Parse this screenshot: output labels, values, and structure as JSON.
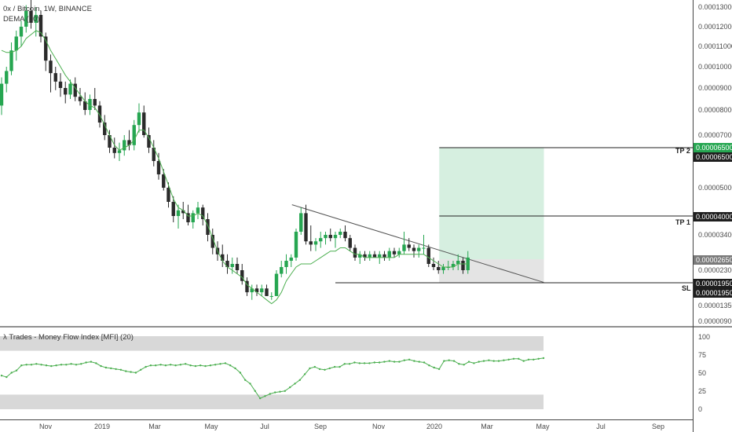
{
  "header": {
    "symbol": "0x / Bitcoin, 1W, BINANCE",
    "indicator": "DEMA (10)"
  },
  "colors": {
    "up": "#26a651",
    "down": "#2b2b2b",
    "dema": "#4caf50",
    "mfi": "#4caf50",
    "target_zone": "#d6efe0",
    "stop_zone": "#e4e4e4",
    "band": "#d8d8d8",
    "tp2_pill": "#26a651",
    "dark_pill": "#1e1e1e"
  },
  "chart_data": [
    {
      "type": "candlestick",
      "title": "0x / Bitcoin, 1W, BINANCE",
      "y_ticks": [
        "0.00013000",
        "0.00012000",
        "0.00011000",
        "0.00010000",
        "0.00009000",
        "0.00008000",
        "0.00007000",
        "0.00006500",
        "0.00005000",
        "0.00004000",
        "0.00003400",
        "0.00002650",
        "0.00002300",
        "0.00001950",
        "0.00001350",
        "0.00000900"
      ],
      "x_ticks": [
        "Nov",
        "2019",
        "Mar",
        "May",
        "Jul",
        "Sep",
        "Nov",
        "2020",
        "Mar",
        "May",
        "Jul",
        "Sep"
      ],
      "candles": [
        [
          8.2e-05,
          9.5e-05,
          7.8e-05,
          9.2e-05
        ],
        [
          9.2e-05,
          0.0001,
          8.8e-05,
          9.8e-05
        ],
        [
          9.8e-05,
          0.000112,
          9.6e-05,
          0.000108
        ],
        [
          0.000108,
          0.000118,
          0.000103,
          0.000115
        ],
        [
          0.000115,
          0.000123,
          0.00011,
          0.00012
        ],
        [
          0.00012,
          0.000131,
          0.000117,
          0.000128
        ],
        [
          0.000128,
          0.000135,
          0.000119,
          0.000122
        ],
        [
          0.000122,
          0.00013,
          0.000115,
          0.000126
        ],
        [
          0.000126,
          0.000128,
          0.000112,
          0.000115
        ],
        [
          0.000115,
          0.000117,
          9.8e-05,
          0.000103
        ],
        [
          0.000103,
          0.000106,
          8.8e-05,
          9.7e-05
        ],
        [
          9.7e-05,
          0.0001,
          8.9e-05,
          9.3e-05
        ],
        [
          9.3e-05,
          9.7e-05,
          8.6e-05,
          9e-05
        ],
        [
          9e-05,
          9.3e-05,
          8.3e-05,
          8.7e-05
        ],
        [
          8.7e-05,
          9.4e-05,
          8.5e-05,
          9.2e-05
        ],
        [
          9.2e-05,
          9.5e-05,
          8.4e-05,
          8.6e-05
        ],
        [
          8.6e-05,
          9e-05,
          8.2e-05,
          8.4e-05
        ],
        [
          8.4e-05,
          8.8e-05,
          7.8e-05,
          8e-05
        ],
        [
          8e-05,
          8.7e-05,
          7.8e-05,
          8.5e-05
        ],
        [
          8.5e-05,
          9e-05,
          8e-05,
          8.2e-05
        ],
        [
          8.2e-05,
          8.4e-05,
          7.3e-05,
          7.5e-05
        ],
        [
          7.5e-05,
          7.8e-05,
          6.8e-05,
          7e-05
        ],
        [
          7e-05,
          7.2e-05,
          6.3e-05,
          6.5e-05
        ],
        [
          6.5e-05,
          6.9e-05,
          6.1e-05,
          6.3e-05
        ],
        [
          6.3e-05,
          6.7e-05,
          6e-05,
          6.4e-05
        ],
        [
          6.4e-05,
          7e-05,
          6.2e-05,
          6.8e-05
        ],
        [
          6.8e-05,
          7.2e-05,
          6.4e-05,
          6.6e-05
        ],
        [
          6.6e-05,
          7.6e-05,
          6.4e-05,
          7.4e-05
        ],
        [
          7.4e-05,
          8.3e-05,
          7.1e-05,
          7.9e-05
        ],
        [
          7.9e-05,
          8.2e-05,
          6.9e-05,
          7e-05
        ],
        [
          7e-05,
          7.3e-05,
          6.3e-05,
          6.5e-05
        ],
        [
          6.5e-05,
          6.8e-05,
          5.8e-05,
          6e-05
        ],
        [
          6e-05,
          6.3e-05,
          5.3e-05,
          5.5e-05
        ],
        [
          5.5e-05,
          5.7e-05,
          4.9e-05,
          5e-05
        ],
        [
          5e-05,
          5.2e-05,
          4.3e-05,
          4.5e-05
        ],
        [
          4.5e-05,
          4.7e-05,
          3.8e-05,
          4e-05
        ],
        [
          4e-05,
          4.4e-05,
          3.6e-05,
          4.2e-05
        ],
        [
          4.2e-05,
          4.5e-05,
          3.9e-05,
          4.1e-05
        ],
        [
          4.1e-05,
          4.4e-05,
          3.7e-05,
          3.8e-05
        ],
        [
          3.8e-05,
          4.2e-05,
          3.6e-05,
          4.1e-05
        ],
        [
          4.1e-05,
          4.5e-05,
          3.9e-05,
          4.3e-05
        ],
        [
          4.3e-05,
          4.4e-05,
          3.7e-05,
          3.9e-05
        ],
        [
          3.9e-05,
          4.1e-05,
          3.2e-05,
          3.4e-05
        ],
        [
          3.4e-05,
          3.6e-05,
          2.8e-05,
          3e-05
        ],
        [
          3e-05,
          3.2e-05,
          2.6e-05,
          2.8e-05
        ],
        [
          2.8e-05,
          3.1e-05,
          2.4e-05,
          2.6e-05
        ],
        [
          2.6e-05,
          2.8e-05,
          2.2e-05,
          2.4e-05
        ],
        [
          2.4e-05,
          2.7e-05,
          2.2e-05,
          2.5e-05
        ],
        [
          2.5e-05,
          2.7e-05,
          2.2e-05,
          2.3e-05
        ],
        [
          2.3e-05,
          2.5e-05,
          1.9e-05,
          2e-05
        ],
        [
          2e-05,
          2.1e-05,
          1.6e-05,
          1.7e-05
        ],
        [
          1.7e-05,
          1.9e-05,
          1.5e-05,
          1.8e-05
        ],
        [
          1.8e-05,
          1.9e-05,
          1.6e-05,
          1.7e-05
        ],
        [
          1.7e-05,
          1.9e-05,
          1.6e-05,
          1.8e-05
        ],
        [
          1.8e-05,
          1.9e-05,
          1.6e-05,
          1.6e-05
        ],
        [
          1.6e-05,
          1.7e-05,
          1.5e-05,
          1.6e-05
        ],
        [
          1.6e-05,
          2.3e-05,
          1.6e-05,
          2.2e-05
        ],
        [
          2.2e-05,
          2.6e-05,
          2.1e-05,
          2.4e-05
        ],
        [
          2.4e-05,
          2.8e-05,
          2.2e-05,
          2.6e-05
        ],
        [
          2.6e-05,
          2.8e-05,
          2.4e-05,
          2.7e-05
        ],
        [
          2.7e-05,
          3.6e-05,
          2.6e-05,
          3.5e-05
        ],
        [
          3.5e-05,
          4.3e-05,
          3.4e-05,
          4.1e-05
        ],
        [
          4.1e-05,
          4.4e-05,
          3.1e-05,
          3.2e-05
        ],
        [
          3.2e-05,
          3.7e-05,
          2.9e-05,
          3.1e-05
        ],
        [
          3.1e-05,
          3.3e-05,
          2.9e-05,
          3.2e-05
        ],
        [
          3.2e-05,
          3.5e-05,
          3e-05,
          3.3e-05
        ],
        [
          3.3e-05,
          3.5e-05,
          3.1e-05,
          3.4e-05
        ],
        [
          3.4e-05,
          3.6e-05,
          3.2e-05,
          3.3e-05
        ],
        [
          3.3e-05,
          3.5e-05,
          3e-05,
          3.4e-05
        ],
        [
          3.4e-05,
          3.6e-05,
          3.3e-05,
          3.5e-05
        ],
        [
          3.5e-05,
          3.7e-05,
          3.2e-05,
          3.3e-05
        ],
        [
          3.3e-05,
          3.4e-05,
          2.9e-05,
          3e-05
        ],
        [
          3e-05,
          3.1e-05,
          2.6e-05,
          2.7e-05
        ],
        [
          2.7e-05,
          2.9e-05,
          2.5e-05,
          2.8e-05
        ],
        [
          2.8e-05,
          2.9e-05,
          2.6e-05,
          2.7e-05
        ],
        [
          2.7e-05,
          2.9e-05,
          2.6e-05,
          2.8e-05
        ],
        [
          2.8e-05,
          2.9e-05,
          2.7e-05,
          2.7e-05
        ],
        [
          2.7e-05,
          2.9e-05,
          2.5e-05,
          2.8e-05
        ],
        [
          2.8e-05,
          2.9e-05,
          2.6e-05,
          2.7e-05
        ],
        [
          2.7e-05,
          3e-05,
          2.6e-05,
          2.9e-05
        ],
        [
          2.9e-05,
          3e-05,
          2.7e-05,
          2.8e-05
        ],
        [
          2.8e-05,
          3e-05,
          2.7e-05,
          2.9e-05
        ],
        [
          2.9e-05,
          3.5e-05,
          2.8e-05,
          3.1e-05
        ],
        [
          3.1e-05,
          3.3e-05,
          2.9e-05,
          3e-05
        ],
        [
          3e-05,
          3.1e-05,
          2.7e-05,
          2.9e-05
        ],
        [
          2.9e-05,
          3.1e-05,
          2.7e-05,
          3e-05
        ],
        [
          3e-05,
          3.4e-05,
          2.8e-05,
          3e-05
        ],
        [
          3e-05,
          3.1e-05,
          2.4e-05,
          2.5e-05
        ],
        [
          2.5e-05,
          2.7e-05,
          2.3e-05,
          2.4e-05
        ],
        [
          2.4e-05,
          2.6e-05,
          2.2e-05,
          2.3e-05
        ],
        [
          2.3e-05,
          2.5e-05,
          2.2e-05,
          2.4e-05
        ],
        [
          2.4e-05,
          2.6e-05,
          2.3e-05,
          2.4e-05
        ],
        [
          2.4e-05,
          2.6e-05,
          2.3e-05,
          2.5e-05
        ],
        [
          2.5e-05,
          2.8e-05,
          2.3e-05,
          2.6e-05
        ],
        [
          2.6e-05,
          2.7e-05,
          2.2e-05,
          2.3e-05
        ],
        [
          2.3e-05,
          2.9e-05,
          2.2e-05,
          2.7e-05
        ]
      ],
      "dema": [
        0.000108,
        0.000107,
        0.000107,
        0.000108,
        0.00011,
        0.000114,
        0.000116,
        0.000118,
        0.000117,
        0.000113,
        0.000108,
        0.000104,
        0.0001,
        9.6e-05,
        9.3e-05,
        9e-05,
        8.7e-05,
        8.4e-05,
        8.2e-05,
        8.1e-05,
        7.8e-05,
        7.4e-05,
        7e-05,
        6.6e-05,
        6.4e-05,
        6.5e-05,
        6.6e-05,
        6.8e-05,
        7.2e-05,
        7.2e-05,
        6.9e-05,
        6.5e-05,
        6.1e-05,
        5.6e-05,
        5.1e-05,
        4.6e-05,
        4.3e-05,
        4.2e-05,
        4e-05,
        4e-05,
        4.1e-05,
        4e-05,
        3.7e-05,
        3.3e-05,
        2.9e-05,
        2.6e-05,
        2.4e-05,
        2.3e-05,
        2.2e-05,
        2.1e-05,
        1.9e-05,
        1.8e-05,
        1.7e-05,
        1.6e-05,
        1.5e-05,
        1.4e-05,
        1.5e-05,
        1.7e-05,
        2e-05,
        2.2e-05,
        2.4e-05,
        2.5e-05,
        2.5e-05,
        2.5e-05,
        2.6e-05,
        2.7e-05,
        2.8e-05,
        2.9e-05,
        2.9e-05,
        3e-05,
        3e-05,
        2.9e-05,
        2.8e-05,
        2.8e-05,
        2.7e-05,
        2.7e-05,
        2.7e-05,
        2.7e-05,
        2.7e-05,
        2.7e-05,
        2.7e-05,
        2.8e-05,
        2.8e-05,
        2.8e-05,
        2.8e-05,
        2.8e-05,
        2.8e-05,
        2.7e-05,
        2.6e-05,
        2.5e-05,
        2.4e-05,
        2.4e-05,
        2.4e-05,
        2.5e-05,
        2.5e-05,
        2.5e-05
      ],
      "trendline": {
        "from_index": 59,
        "from_value": 4.4e-05,
        "to_index": 110,
        "to_value": 1.96e-05
      },
      "support": {
        "from_index": 68,
        "to_index": 110,
        "value": 1.95e-05
      },
      "levels": [
        {
          "label": "TP 2",
          "value": 6.5e-05
        },
        {
          "label": "TP 1",
          "value": 4e-05
        },
        {
          "label": "SL",
          "value": 1.95e-05
        }
      ],
      "entry": 2.65e-05,
      "position_span": {
        "from_index": 89,
        "to_index": 110
      }
    },
    {
      "type": "line",
      "title": "λ Trades - Money Flow Index [MFI] (20)",
      "ylim": [
        0,
        100
      ],
      "y_ticks": [
        100,
        75,
        50,
        25,
        0
      ],
      "bands": [
        [
          80,
          100
        ],
        [
          0,
          20
        ]
      ],
      "values": [
        46,
        44,
        50,
        53,
        60,
        61,
        61,
        62,
        61,
        60,
        59,
        60,
        61,
        61,
        62,
        61,
        62,
        64,
        65,
        63,
        59,
        57,
        56,
        55,
        54,
        52,
        51,
        50,
        54,
        58,
        60,
        60,
        61,
        60,
        61,
        60,
        61,
        62,
        60,
        59,
        60,
        59,
        60,
        61,
        62,
        63,
        60,
        56,
        50,
        40,
        35,
        25,
        15,
        18,
        21,
        23,
        24,
        25,
        30,
        35,
        40,
        48,
        56,
        58,
        55,
        54,
        56,
        58,
        58,
        62,
        62,
        64,
        63,
        63,
        63,
        64,
        64,
        65,
        66,
        65,
        65,
        67,
        68,
        66,
        65,
        64,
        60,
        57,
        55,
        66,
        67,
        66,
        62,
        61,
        65,
        63,
        65,
        66,
        67,
        66,
        66,
        67,
        68,
        69,
        69,
        66,
        68,
        68,
        69,
        70
      ]
    }
  ],
  "axis_labels": {
    "y": [
      "0.00013000",
      "0.00012000",
      "0.00011000",
      "0.00010000",
      "0.00009000",
      "0.00008000",
      "0.00007000",
      "0.00005000",
      "0.00003400",
      "0.00002300",
      "0.00001350",
      "0.00000900"
    ],
    "x": [
      "Nov",
      "2019",
      "Mar",
      "May",
      "Jul",
      "Sep",
      "Nov",
      "2020",
      "Mar",
      "May",
      "Jul",
      "Sep"
    ],
    "mfi": [
      "100",
      "75",
      "50",
      "25",
      "0"
    ]
  },
  "pills": {
    "tp2_a": "0.00006500",
    "tp2_b": "0.00006500",
    "tp1": "0.00004000",
    "entry": "0.00002650",
    "sl_a": "0.00001950",
    "sl_b": "0.00001950"
  },
  "level_tags": {
    "tp2": "TP 2",
    "tp1": "TP 1",
    "sl": "SL"
  },
  "mfi_title": "λ Trades - Money Flow Index [MFI] (20)"
}
